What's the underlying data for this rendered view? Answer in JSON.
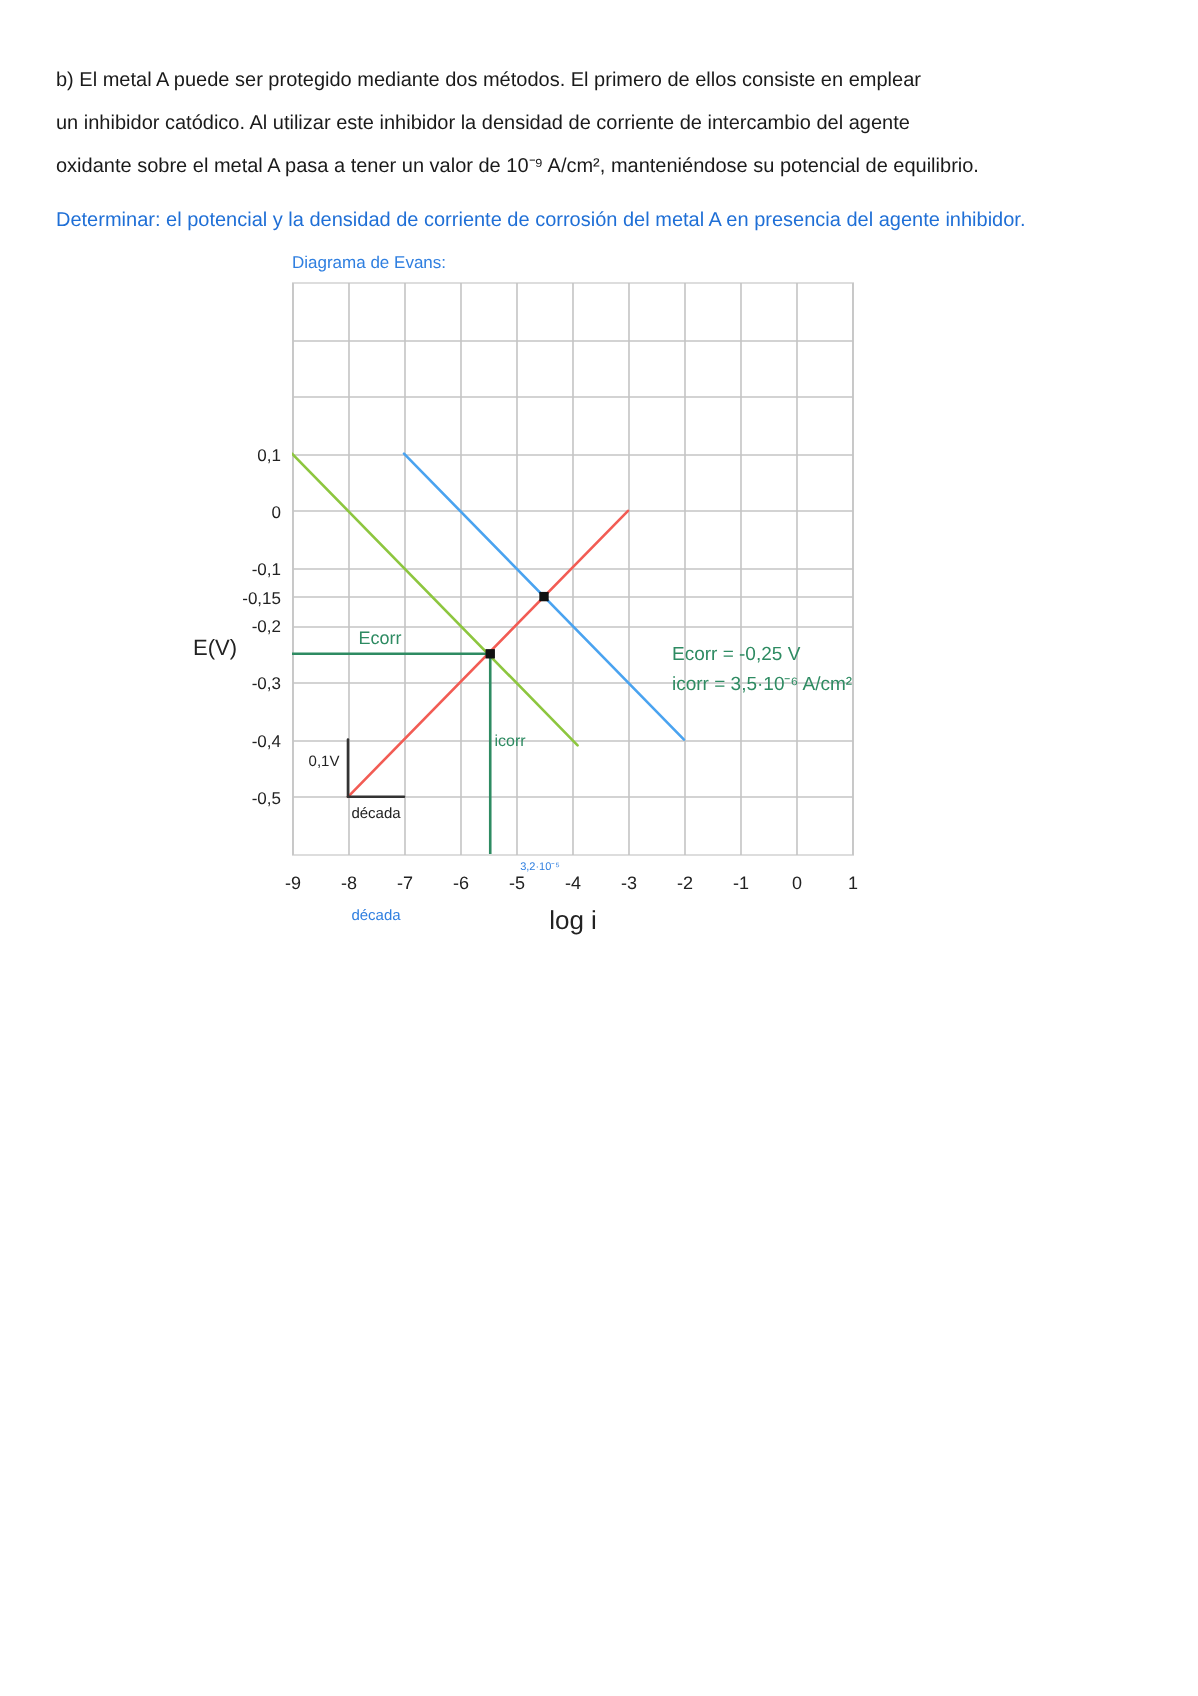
{
  "chart_data": {
    "type": "line",
    "title": "Diagrama de Evans:",
    "xlabel": "log i",
    "ylabel": "E(V)",
    "xlim": [
      -9,
      1
    ],
    "ylim": [
      -0.6,
      0.4
    ],
    "xticks": [
      -9,
      -8,
      -7,
      -6,
      -5,
      -4,
      -3,
      -2,
      -1,
      0,
      1
    ],
    "yticks": [
      {
        "value": 0.3,
        "label": null
      },
      {
        "value": 0.2,
        "label": null
      },
      {
        "value": 0.1,
        "label": "0,1"
      },
      0,
      {
        "value": -0.1,
        "label": "-0,1"
      },
      {
        "value": -0.15,
        "label": "-0,15"
      },
      {
        "value": -0.2,
        "label": "-0,2"
      },
      {
        "value": -0.3,
        "label": "-0,3"
      },
      {
        "value": -0.4,
        "label": "-0,4"
      },
      {
        "value": -0.5,
        "label": "-0,5"
      }
    ],
    "grid": true,
    "series": [
      {
        "color": "#f25c54",
        "x": [
          -8,
          -3
        ],
        "values": [
          -0.5,
          0.0
        ]
      },
      {
        "color": "#8dc63f",
        "x": [
          -9,
          -3.9
        ],
        "values": [
          0.1,
          -0.41
        ]
      },
      {
        "color": "#4aa3f0",
        "x": [
          -7,
          -2
        ],
        "values": [
          0.1,
          -0.4
        ]
      },
      {
        "color": "#2e8b62",
        "x": [
          -9,
          -5.46
        ],
        "values": [
          -0.25,
          -0.25
        ]
      },
      {
        "color": "#2e8b62",
        "x": [
          -5.46,
          -5.46
        ],
        "values": [
          -0.25,
          -0.6
        ]
      },
      {
        "color": "#333333",
        "x": [
          -8,
          -8
        ],
        "values": [
          -0.5,
          -0.4
        ]
      },
      {
        "color": "#333333",
        "x": [
          -8,
          -7
        ],
        "values": [
          -0.5,
          -0.5
        ]
      },
      {
        "type": "scatter",
        "marker": "square",
        "color": "#111111",
        "x": [
          -5.46,
          -4.5
        ],
        "values": [
          -0.25,
          -0.15
        ]
      }
    ],
    "annotations": [
      "b) El metal A puede ser protegido mediante dos métodos. El primero de ellos consiste en emplear\nun inhibidor catódico. Al utilizar este inhibidor la densidad de corriente de intercambio del agente\noxidante sobre el metal A pasa a tener un valor de 10⁻⁹ A/cm², manteniéndose su potencial de equilibrio.",
      "Determinar: el potencial y la densidad de corriente de corrosión del metal A en presencia del agente inhibidor.",
      "Ecorr",
      "icorr",
      "0,1V",
      "década",
      "Ecorr = -0,25 V\nicorr = 3,5·10⁻⁶ A/cm²",
      "3,2·10⁻⁵",
      "década"
    ]
  }
}
